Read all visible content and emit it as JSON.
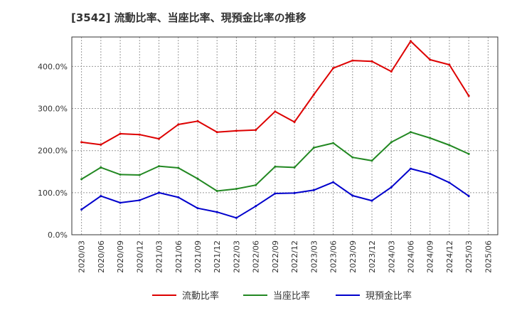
{
  "chart_data": {
    "type": "line",
    "title": "[3542]  流動比率、当座比率、現預金比率の推移",
    "xlabel": "",
    "ylabel": "",
    "ylim": [
      0,
      470
    ],
    "yticks": [
      0,
      100,
      200,
      300,
      400
    ],
    "ytick_labels": [
      "0.0%",
      "100.0%",
      "200.0%",
      "300.0%",
      "400.0%"
    ],
    "grid": true,
    "legend_position": "bottom",
    "x": [
      "2020/03",
      "2020/06",
      "2020/09",
      "2020/12",
      "2021/03",
      "2021/06",
      "2021/09",
      "2021/12",
      "2022/03",
      "2022/06",
      "2022/09",
      "2022/12",
      "2023/03",
      "2023/06",
      "2023/09",
      "2023/12",
      "2024/03",
      "2024/06",
      "2024/09",
      "2024/12",
      "2025/03",
      "2025/06"
    ],
    "series": [
      {
        "name": "流動比率",
        "color": "#dd0000",
        "values": [
          220,
          214,
          240,
          238,
          228,
          262,
          270,
          244,
          247,
          249,
          293,
          268,
          333,
          396,
          414,
          412,
          388,
          460,
          416,
          404,
          330,
          null
        ]
      },
      {
        "name": "当座比率",
        "color": "#228822",
        "values": [
          132,
          160,
          143,
          142,
          163,
          159,
          133,
          104,
          109,
          118,
          162,
          160,
          207,
          218,
          184,
          176,
          220,
          244,
          230,
          213,
          192,
          null
        ]
      },
      {
        "name": "現預金比率",
        "color": "#0000cc",
        "values": [
          60,
          92,
          76,
          82,
          100,
          89,
          63,
          54,
          40,
          68,
          98,
          99,
          106,
          125,
          93,
          81,
          113,
          157,
          145,
          124,
          92,
          null
        ]
      }
    ]
  }
}
